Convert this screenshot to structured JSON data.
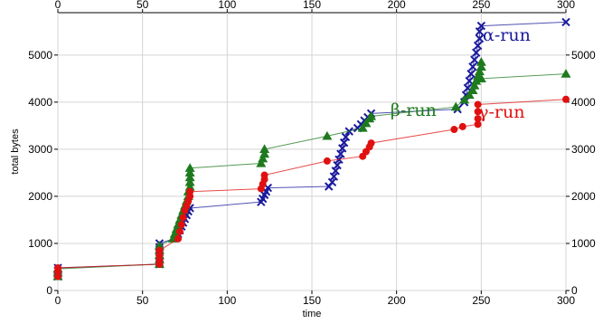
{
  "chart_data": {
    "type": "line",
    "title": "",
    "xlabel": "time",
    "ylabel": "total bytes",
    "xlim": [
      0,
      300
    ],
    "ylim": [
      0,
      5900
    ],
    "xticks": [
      0,
      50,
      100,
      150,
      200,
      250,
      300
    ],
    "yticks": [
      0,
      1000,
      2000,
      3000,
      4000,
      5000
    ],
    "grid": true,
    "legend": "inline labels",
    "series": [
      {
        "name": "α-run",
        "color": "#1a1a9c",
        "marker": "x",
        "label_pos": [
          265,
          5300
        ],
        "points": [
          [
            0,
            300
          ],
          [
            0,
            350
          ],
          [
            0,
            420
          ],
          [
            0,
            480
          ],
          [
            60,
            560
          ],
          [
            60,
            600
          ],
          [
            60,
            680
          ],
          [
            60,
            760
          ],
          [
            60,
            840
          ],
          [
            60,
            920
          ],
          [
            60,
            1000
          ],
          [
            70,
            1120
          ],
          [
            71,
            1200
          ],
          [
            72,
            1280
          ],
          [
            73,
            1360
          ],
          [
            74,
            1440
          ],
          [
            75,
            1520
          ],
          [
            76,
            1600
          ],
          [
            77,
            1680
          ],
          [
            78,
            1750
          ],
          [
            120,
            1880
          ],
          [
            121,
            1950
          ],
          [
            122,
            2030
          ],
          [
            123,
            2100
          ],
          [
            124,
            2180
          ],
          [
            160,
            2210
          ],
          [
            162,
            2300
          ],
          [
            163,
            2420
          ],
          [
            164,
            2540
          ],
          [
            165,
            2660
          ],
          [
            166,
            2780
          ],
          [
            167,
            2900
          ],
          [
            168,
            3020
          ],
          [
            169,
            3140
          ],
          [
            170,
            3260
          ],
          [
            172,
            3380
          ],
          [
            177,
            3450
          ],
          [
            179,
            3530
          ],
          [
            181,
            3610
          ],
          [
            183,
            3680
          ],
          [
            185,
            3760
          ],
          [
            236,
            3850
          ],
          [
            240,
            4000
          ],
          [
            241,
            4150
          ],
          [
            242,
            4300
          ],
          [
            243,
            4450
          ],
          [
            244,
            4600
          ],
          [
            245,
            4750
          ],
          [
            246,
            4900
          ],
          [
            247,
            5050
          ],
          [
            248,
            5200
          ],
          [
            249,
            5350
          ],
          [
            249,
            5500
          ],
          [
            250,
            5620
          ],
          [
            300,
            5700
          ]
        ]
      },
      {
        "name": "β-run",
        "color": "#1e7a1e",
        "marker": "triangle",
        "label_pos": [
          210,
          3710
        ],
        "points": [
          [
            0,
            300
          ],
          [
            0,
            380
          ],
          [
            0,
            460
          ],
          [
            60,
            560
          ],
          [
            60,
            650
          ],
          [
            60,
            750
          ],
          [
            60,
            850
          ],
          [
            60,
            950
          ],
          [
            68,
            1100
          ],
          [
            69,
            1200
          ],
          [
            70,
            1300
          ],
          [
            71,
            1400
          ],
          [
            72,
            1500
          ],
          [
            73,
            1600
          ],
          [
            74,
            1700
          ],
          [
            75,
            1800
          ],
          [
            76,
            1900
          ],
          [
            77,
            2000
          ],
          [
            77,
            2100
          ],
          [
            78,
            2200
          ],
          [
            78,
            2300
          ],
          [
            78,
            2400
          ],
          [
            78,
            2500
          ],
          [
            78,
            2600
          ],
          [
            120,
            2700
          ],
          [
            121,
            2800
          ],
          [
            122,
            2900
          ],
          [
            122,
            3000
          ],
          [
            159,
            3280
          ],
          [
            180,
            3450
          ],
          [
            182,
            3550
          ],
          [
            184,
            3650
          ],
          [
            185,
            3700
          ],
          [
            235,
            3900
          ],
          [
            240,
            4050
          ],
          [
            243,
            4150
          ],
          [
            245,
            4250
          ],
          [
            246,
            4350
          ],
          [
            247,
            4450
          ],
          [
            248,
            4550
          ],
          [
            249,
            4650
          ],
          [
            250,
            4750
          ],
          [
            250,
            4850
          ],
          [
            250,
            4500
          ],
          [
            300,
            4600
          ]
        ]
      },
      {
        "name": "γ-run",
        "color": "#e01010",
        "marker": "circle",
        "label_pos": [
          262,
          3670
        ],
        "points": [
          [
            0,
            300
          ],
          [
            0,
            400
          ],
          [
            0,
            480
          ],
          [
            60,
            560
          ],
          [
            60,
            650
          ],
          [
            60,
            750
          ],
          [
            60,
            850
          ],
          [
            71,
            1100
          ],
          [
            72,
            1250
          ],
          [
            73,
            1400
          ],
          [
            74,
            1550
          ],
          [
            75,
            1700
          ],
          [
            76,
            1800
          ],
          [
            77,
            1900
          ],
          [
            78,
            2000
          ],
          [
            78,
            2100
          ],
          [
            120,
            2160
          ],
          [
            121,
            2260
          ],
          [
            122,
            2360
          ],
          [
            122,
            2450
          ],
          [
            159,
            2750
          ],
          [
            180,
            2850
          ],
          [
            182,
            2950
          ],
          [
            184,
            3050
          ],
          [
            185,
            3130
          ],
          [
            234,
            3420
          ],
          [
            239,
            3480
          ],
          [
            248,
            3530
          ],
          [
            248,
            3650
          ],
          [
            248,
            3800
          ],
          [
            248,
            3950
          ],
          [
            300,
            4060
          ]
        ]
      }
    ]
  }
}
